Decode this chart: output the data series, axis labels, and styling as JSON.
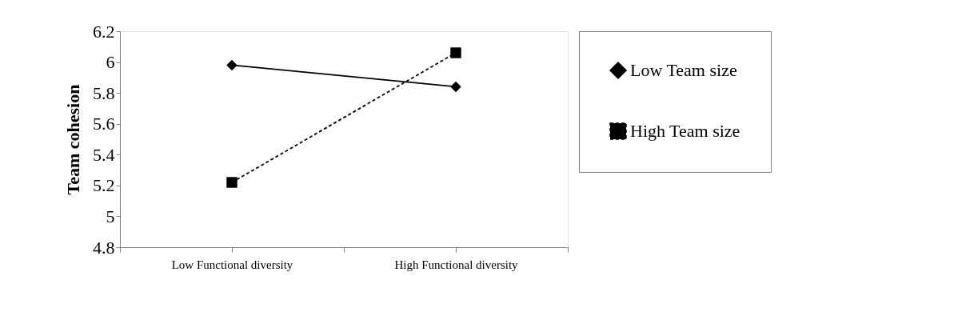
{
  "chart_data": {
    "type": "line",
    "ylabel": "Team cohesion",
    "categories": [
      "Low Functional diversity",
      "High Functional diversity"
    ],
    "series": [
      {
        "name": "Low Team size",
        "color": "#000000",
        "values": [
          5.98,
          5.84
        ],
        "marker": "diamond",
        "line_style": "solid"
      },
      {
        "name": "High Team size",
        "color": "#000000",
        "values": [
          5.22,
          6.06
        ],
        "marker": "square",
        "line_style": "dashed"
      }
    ],
    "ylim": [
      4.8,
      6.2
    ],
    "yticks": [
      4.8,
      5,
      5.2,
      5.4,
      5.6,
      5.8,
      6,
      6.2
    ],
    "grid": false,
    "legend": "right"
  }
}
